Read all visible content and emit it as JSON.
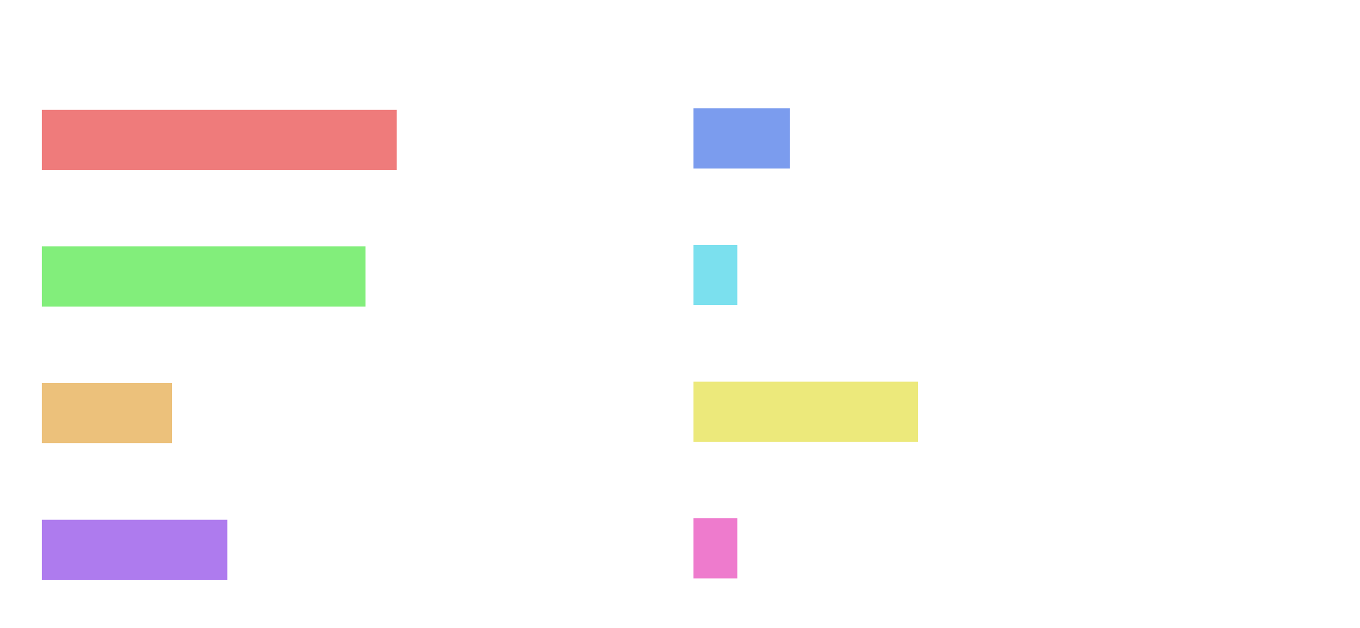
{
  "bars": [
    {
      "id": "bar-red",
      "color": "#ef7b7b"
    },
    {
      "id": "bar-green",
      "color": "#82ee7b"
    },
    {
      "id": "bar-orange",
      "color": "#ecc17b"
    },
    {
      "id": "bar-purple",
      "color": "#ae7bee"
    },
    {
      "id": "bar-blue",
      "color": "#7b9cee"
    },
    {
      "id": "bar-cyan",
      "color": "#7be0ee"
    },
    {
      "id": "bar-yellow",
      "color": "#ece97b"
    },
    {
      "id": "bar-pink",
      "color": "#ee7bcd"
    }
  ]
}
